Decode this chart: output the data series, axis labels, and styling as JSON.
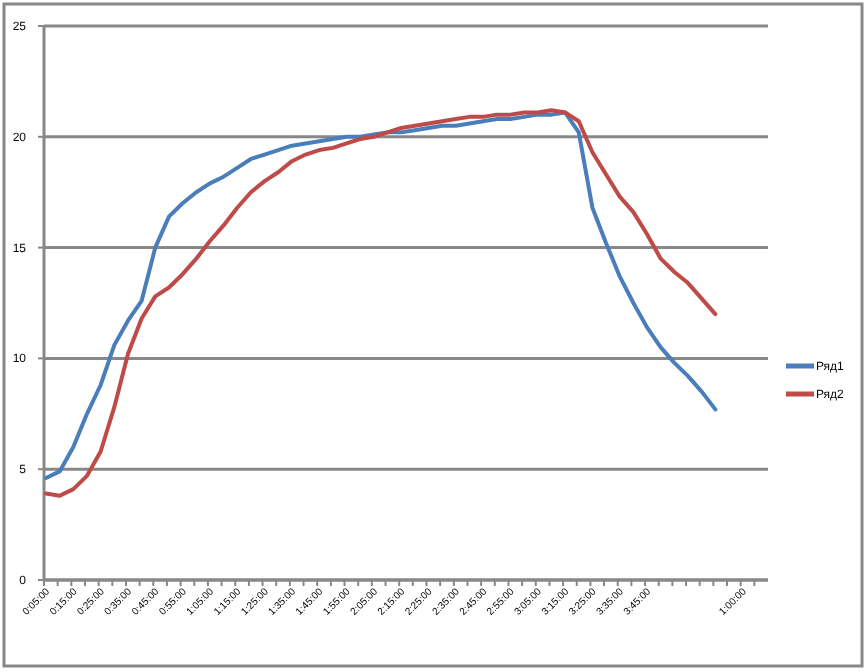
{
  "chart_data": {
    "type": "line",
    "categories": [
      "0:05:00",
      null,
      "0:15:00",
      null,
      "0:25:00",
      null,
      "0:35:00",
      null,
      "0:45:00",
      null,
      "0:55:00",
      null,
      "1:05:00",
      null,
      "1:15:00",
      null,
      "1:25:00",
      null,
      "1:35:00",
      null,
      "1:45:00",
      null,
      "1:55:00",
      null,
      "2:05:00",
      null,
      "2:15:00",
      null,
      "2:25:00",
      null,
      "2:35:00",
      null,
      "2:45:00",
      null,
      "2:55:00",
      null,
      "3:05:00",
      null,
      "3:15:00",
      null,
      "3:25:00",
      null,
      "3:35:00",
      null,
      "3:45:00",
      null,
      null,
      null,
      null,
      null,
      null,
      "1:00:00",
      null
    ],
    "series": [
      {
        "name": "Ряд1",
        "color": "#4a7ebb",
        "values": [
          4.6,
          4.9,
          6.0,
          7.5,
          8.8,
          10.6,
          11.7,
          12.6,
          15.0,
          16.4,
          17.0,
          17.5,
          17.9,
          18.2,
          18.6,
          19.0,
          19.2,
          19.4,
          19.6,
          19.7,
          19.8,
          19.9,
          20.0,
          20.0,
          20.1,
          20.2,
          20.2,
          20.3,
          20.4,
          20.5,
          20.5,
          20.6,
          20.7,
          20.8,
          20.8,
          20.9,
          21.0,
          21.0,
          21.1,
          20.2,
          16.8,
          15.2,
          13.7,
          12.5,
          11.4,
          10.5,
          9.8,
          9.2,
          8.5,
          7.7,
          null,
          null,
          null
        ]
      },
      {
        "name": "Ряд2",
        "color": "#be4b48",
        "values": [
          3.9,
          3.8,
          4.1,
          4.7,
          5.8,
          7.8,
          10.2,
          11.8,
          12.8,
          13.2,
          13.8,
          14.5,
          15.3,
          16.0,
          16.8,
          17.5,
          18.0,
          18.4,
          18.9,
          19.2,
          19.4,
          19.5,
          19.7,
          19.9,
          20.0,
          20.2,
          20.4,
          20.5,
          20.6,
          20.7,
          20.8,
          20.9,
          20.9,
          21.0,
          21.0,
          21.1,
          21.1,
          21.2,
          21.1,
          20.7,
          19.3,
          18.3,
          17.3,
          16.6,
          15.6,
          14.5,
          13.9,
          13.4,
          12.7,
          12.0,
          null,
          null,
          null
        ]
      }
    ],
    "ylim": [
      0,
      25
    ],
    "yticks": [
      0,
      5,
      10,
      15,
      20,
      25
    ],
    "grid": "y",
    "legend": "right",
    "marker": "none",
    "line_style": "solid"
  }
}
